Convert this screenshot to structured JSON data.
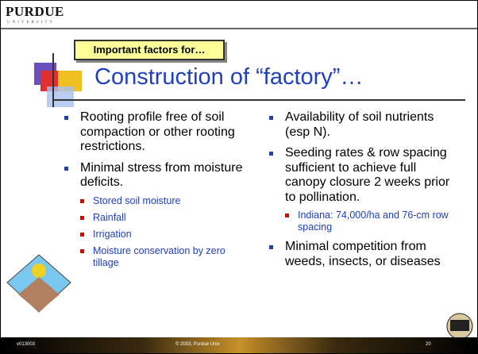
{
  "header": {
    "logo": "PURDUE",
    "logo_sub": "UNIVERSITY"
  },
  "tag": "Important factors for…",
  "title": "Construction of “factory”…",
  "left": [
    {
      "text": "Rooting profile free of soil compaction or other rooting restrictions.",
      "sub": []
    },
    {
      "text": "Minimal stress from moisture deficits.",
      "sub": [
        "Stored soil moisture",
        "Rainfall",
        "Irrigation",
        "Moisture conservation by zero tillage"
      ]
    }
  ],
  "right": [
    {
      "text": "Availability of soil nutrients (esp N).",
      "sub": []
    },
    {
      "text": "Seeding rates & row spacing sufficient to achieve full canopy closure 2 weeks prior to pollination.",
      "sub": [
        "Indiana: 74,000/ha and 76-cm row spacing"
      ]
    },
    {
      "text": "Minimal competition from weeds, insects, or diseases",
      "sub": []
    }
  ],
  "footer": {
    "left": "v013003",
    "center": "© 2003, Purdue Univ",
    "page": "20"
  }
}
